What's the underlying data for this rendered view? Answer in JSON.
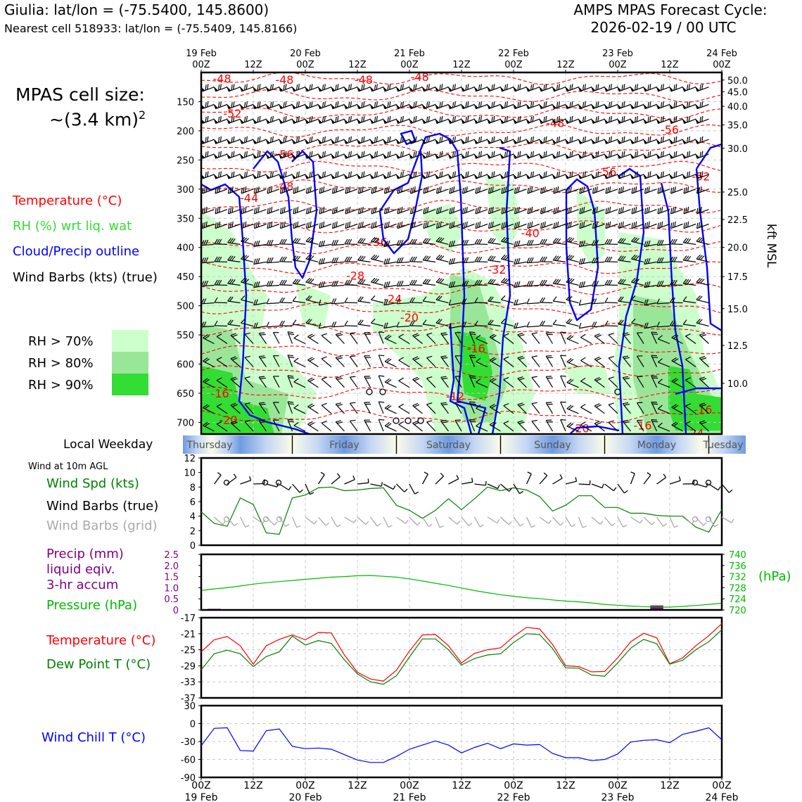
{
  "header": {
    "location_line": "Giulia: lat/lon = (-75.5400, 145.8600)",
    "nearest_line": "Nearest cell 518933: lat/lon = (-75.5409, 145.8166)",
    "forecast_title": "AMPS MPAS Forecast Cycle:",
    "forecast_cycle": "2026-02-19 / 00 UTC"
  },
  "cell_size": {
    "line1": "MPAS cell size:",
    "line2": "~(3.4 km)",
    "superscript": "2"
  },
  "legend": {
    "temperature": "Temperature (°C)",
    "rh": "RH (%) wrt liq. wat",
    "cloud": "Cloud/Precip outline",
    "barbs": "Wind Barbs (kts) (true)",
    "rh70": "RH > 70%",
    "rh80": "RH > 80%",
    "rh90": "RH > 90%",
    "colors": {
      "temperature": "#ff0000",
      "rh": "#33dd33",
      "cloud": "#0000ff",
      "rh70": "#ccffcc",
      "rh80": "#99e699",
      "rh90": "#33dd33"
    }
  },
  "weekday": {
    "label": "Local Weekday",
    "days": [
      "Thursday",
      "Friday",
      "Saturday",
      "Sunday",
      "Monday",
      "Tuesday"
    ]
  },
  "panel_labels": {
    "wind10m": "Wind at 10m AGL",
    "wind_spd": "Wind Spd (kts)",
    "barbs_true": "Wind Barbs (true)",
    "barbs_grid": "Wind Barbs (grid)",
    "precip1": "Precip (mm)",
    "precip2": "liquid eqiv.",
    "precip3": "3-hr accum",
    "pressure": "Pressure (hPa)",
    "pressure_unit": "(hPa)",
    "temp": "Temperature (°C)",
    "dewpoint": "Dew Point T (°C)",
    "windchill": "Wind Chill T (°C)",
    "kft": "kft MSL"
  },
  "chart_data": [
    {
      "type": "heatmap",
      "description_key": "time-height cross section",
      "x_top_labels": [
        [
          "19 Feb",
          "00Z"
        ],
        [
          "",
          "12Z"
        ],
        [
          "20 Feb",
          "00Z"
        ],
        [
          "",
          "12Z"
        ],
        [
          "21 Feb",
          "00Z"
        ],
        [
          "",
          "12Z"
        ],
        [
          "22 Feb",
          "00Z"
        ],
        [
          "",
          "12Z"
        ],
        [
          "23 Feb",
          "00Z"
        ],
        [
          "",
          "12Z"
        ],
        [
          "24 Feb",
          "00Z"
        ]
      ],
      "y_pressure_ticks": [
        150,
        200,
        250,
        300,
        350,
        400,
        450,
        500,
        550,
        600,
        650,
        700
      ],
      "ylim_hpa": [
        100,
        720
      ],
      "y_kft_ticks": [
        "50.0",
        "45.0",
        "40.0",
        "35.0",
        "30.0",
        "25.0",
        "22.5",
        "20.0",
        "17.5",
        "15.0",
        "12.5",
        "10.0"
      ],
      "y_kft_pressures": [
        113,
        133,
        158,
        190,
        230,
        305,
        352,
        400,
        450,
        505,
        568,
        633
      ],
      "temperature_contours": [
        {
          "label": "-48",
          "t": 0.1,
          "p": 110
        },
        {
          "label": "-48",
          "t": 0.4,
          "p": 112
        },
        {
          "label": "-48",
          "t": 0.78,
          "p": 112
        },
        {
          "label": "-48",
          "t": 1.05,
          "p": 107
        },
        {
          "label": "-52",
          "t": 0.15,
          "p": 170
        },
        {
          "label": "-48",
          "t": 1.7,
          "p": 186
        },
        {
          "label": "-56",
          "t": 2.25,
          "p": 198
        },
        {
          "label": "-56",
          "t": 0.4,
          "p": 240
        },
        {
          "label": "-56",
          "t": 1.95,
          "p": 270
        },
        {
          "label": "-52",
          "t": 2.4,
          "p": 278
        },
        {
          "label": "-44",
          "t": 0.23,
          "p": 315
        },
        {
          "label": "-48",
          "t": 0.4,
          "p": 295
        },
        {
          "label": "-40",
          "t": 1.58,
          "p": 375
        },
        {
          "label": "-36",
          "t": 0.85,
          "p": 390
        },
        {
          "label": "-32",
          "t": 1.42,
          "p": 438
        },
        {
          "label": "-28",
          "t": 0.74,
          "p": 448
        },
        {
          "label": "-24",
          "t": 0.92,
          "p": 488
        },
        {
          "label": "-20",
          "t": 1.0,
          "p": 520
        },
        {
          "label": "-16",
          "t": 1.32,
          "p": 573
        },
        {
          "label": "-16",
          "t": 0.09,
          "p": 650
        },
        {
          "label": "-12",
          "t": 1.22,
          "p": 655
        },
        {
          "label": "-16",
          "t": 2.41,
          "p": 678
        },
        {
          "label": "-20",
          "t": 0.13,
          "p": 695
        },
        {
          "label": "-16",
          "t": 2.12,
          "p": 705
        },
        {
          "label": "-20",
          "t": 1.82,
          "p": 710
        },
        {
          "label": "-24",
          "t": 2.37,
          "p": 718
        }
      ]
    },
    {
      "type": "line",
      "title_key": "wind10m",
      "ylim": [
        0,
        12
      ],
      "yticks": [
        0,
        2,
        4,
        6,
        8,
        10,
        12
      ],
      "x_hours": [
        0,
        3,
        6,
        9,
        12,
        15,
        18,
        21,
        24,
        27,
        30,
        33,
        36,
        39,
        42,
        45,
        48,
        51,
        54,
        57,
        60,
        63,
        66,
        69,
        72,
        75,
        78,
        81,
        84,
        87,
        90,
        93,
        96,
        99,
        102,
        105,
        108,
        111,
        114,
        117,
        120
      ],
      "series": [
        {
          "name": "Wind Spd (kts)",
          "color": "#008000",
          "values": [
            4.6,
            3.0,
            2.6,
            6.5,
            5.6,
            1.7,
            1.5,
            6.5,
            6.9,
            7.9,
            8.0,
            7.5,
            7.6,
            7.8,
            7.9,
            5.5,
            4.8,
            3.7,
            4.8,
            6.4,
            4.9,
            6.4,
            8.0,
            7.5,
            7.9,
            7.6,
            6.7,
            4.7,
            5.5,
            6.8,
            6.8,
            5.2,
            5.2,
            4.4,
            4.4,
            4.1,
            4.0,
            4.0,
            2.5,
            1.8,
            4.9
          ]
        }
      ]
    },
    {
      "type": "line",
      "title_key": "precip_pressure",
      "precip_ylim": [
        0,
        2.5
      ],
      "precip_yticks": [
        "0",
        "0.5",
        "1.0",
        "1.5",
        "2.0",
        "2.5"
      ],
      "pressure_ylim": [
        720,
        740
      ],
      "pressure_yticks": [
        "720",
        "724",
        "728",
        "732",
        "736",
        "740"
      ],
      "x_hours": [
        0,
        3,
        6,
        9,
        12,
        15,
        18,
        21,
        24,
        27,
        30,
        33,
        36,
        39,
        42,
        45,
        48,
        51,
        54,
        57,
        60,
        63,
        66,
        69,
        72,
        75,
        78,
        81,
        84,
        87,
        90,
        93,
        96,
        99,
        102,
        105,
        108,
        111,
        114,
        117,
        120
      ],
      "series": [
        {
          "name": "Pressure (hPa)",
          "color": "#00bb00",
          "values": [
            727.0,
            727.6,
            728.0,
            728.6,
            729.3,
            729.8,
            730.2,
            730.6,
            731.0,
            731.4,
            731.8,
            732.0,
            732.3,
            732.4,
            732.1,
            731.8,
            731.2,
            730.4,
            729.6,
            728.8,
            727.9,
            727.0,
            726.2,
            725.5,
            724.9,
            724.4,
            724.1,
            723.6,
            723.2,
            722.9,
            722.5,
            722.0,
            721.7,
            721.4,
            721.2,
            721.0,
            721.0,
            721.3,
            721.6,
            722.0,
            722.4
          ]
        },
        {
          "name": "Precip (mm)",
          "color": "#800080",
          "bars": [
            {
              "hour": 3,
              "value": 0.05
            },
            {
              "hour": 105,
              "value": 0.2
            }
          ]
        }
      ]
    },
    {
      "type": "line",
      "title_key": "temp_dew",
      "ylim": [
        -37,
        -17
      ],
      "yticks": [
        -17,
        -21,
        -25,
        -29,
        -33,
        -37
      ],
      "x_hours": [
        0,
        3,
        6,
        9,
        12,
        15,
        18,
        21,
        24,
        27,
        30,
        33,
        36,
        39,
        42,
        45,
        48,
        51,
        54,
        57,
        60,
        63,
        66,
        69,
        72,
        75,
        78,
        81,
        84,
        87,
        90,
        93,
        96,
        99,
        102,
        105,
        108,
        111,
        114,
        117,
        120
      ],
      "series": [
        {
          "name": "Temperature (°C)",
          "color": "#ff0000",
          "values": [
            -25.5,
            -22.5,
            -21.7,
            -24,
            -28.6,
            -24,
            -22.4,
            -21.3,
            -22.5,
            -20.7,
            -20.8,
            -26.3,
            -30.6,
            -32.3,
            -32.8,
            -30.1,
            -25.3,
            -21.3,
            -21.2,
            -24,
            -28.3,
            -25.9,
            -25.0,
            -24.5,
            -21.7,
            -19.4,
            -19.8,
            -23.7,
            -29.0,
            -29.2,
            -30.5,
            -30.4,
            -27.0,
            -23.0,
            -20.9,
            -22.0,
            -28.5,
            -27.0,
            -24.0,
            -21.5,
            -18.5
          ]
        },
        {
          "name": "Dew Point T (°C)",
          "color": "#008000",
          "values": [
            -30,
            -26,
            -25.1,
            -26,
            -29.2,
            -26.7,
            -25.5,
            -21.6,
            -23.8,
            -22.7,
            -23.4,
            -27.5,
            -31.0,
            -33.0,
            -33.6,
            -31.5,
            -26.8,
            -22.3,
            -22.3,
            -25.0,
            -28.8,
            -27.2,
            -26.3,
            -26.0,
            -23.2,
            -21.0,
            -21.2,
            -24.7,
            -29.5,
            -29.6,
            -31.3,
            -31.6,
            -28.3,
            -24.6,
            -22.4,
            -23.5,
            -28.6,
            -27.6,
            -25.0,
            -23.0,
            -20.0
          ]
        }
      ]
    },
    {
      "type": "line",
      "title_key": "windchill",
      "ylim": [
        -90,
        30
      ],
      "yticks": [
        30,
        0,
        -30,
        -60,
        -90
      ],
      "x_hours": [
        0,
        3,
        6,
        9,
        12,
        15,
        18,
        21,
        24,
        27,
        30,
        33,
        36,
        39,
        42,
        45,
        48,
        51,
        54,
        57,
        60,
        63,
        66,
        69,
        72,
        75,
        78,
        81,
        84,
        87,
        90,
        93,
        96,
        99,
        102,
        105,
        108,
        111,
        114,
        117,
        120
      ],
      "series": [
        {
          "name": "Wind Chill T (°C)",
          "color": "#0000ff",
          "values": [
            -37,
            -8,
            -7,
            -45,
            -46,
            -12,
            -9,
            -38,
            -42,
            -41,
            -43,
            -52,
            -61,
            -65,
            -65,
            -55,
            -43,
            -36,
            -29,
            -36,
            -49,
            -40,
            -33,
            -42,
            -34,
            -36,
            -35,
            -50,
            -57,
            -57,
            -62,
            -60,
            -51,
            -31,
            -28,
            -27,
            -32,
            -18,
            -13,
            -7,
            -27
          ]
        }
      ]
    }
  ],
  "x_bottom_labels": [
    [
      "00Z",
      "19 Feb"
    ],
    [
      "12Z",
      ""
    ],
    [
      "00Z",
      "20 Feb"
    ],
    [
      "12Z",
      ""
    ],
    [
      "00Z",
      "21 Feb"
    ],
    [
      "12Z",
      ""
    ],
    [
      "00Z",
      "22 Feb"
    ],
    [
      "12Z",
      ""
    ],
    [
      "00Z",
      "23 Feb"
    ],
    [
      "12Z",
      ""
    ],
    [
      "00Z",
      "24 Feb"
    ]
  ]
}
